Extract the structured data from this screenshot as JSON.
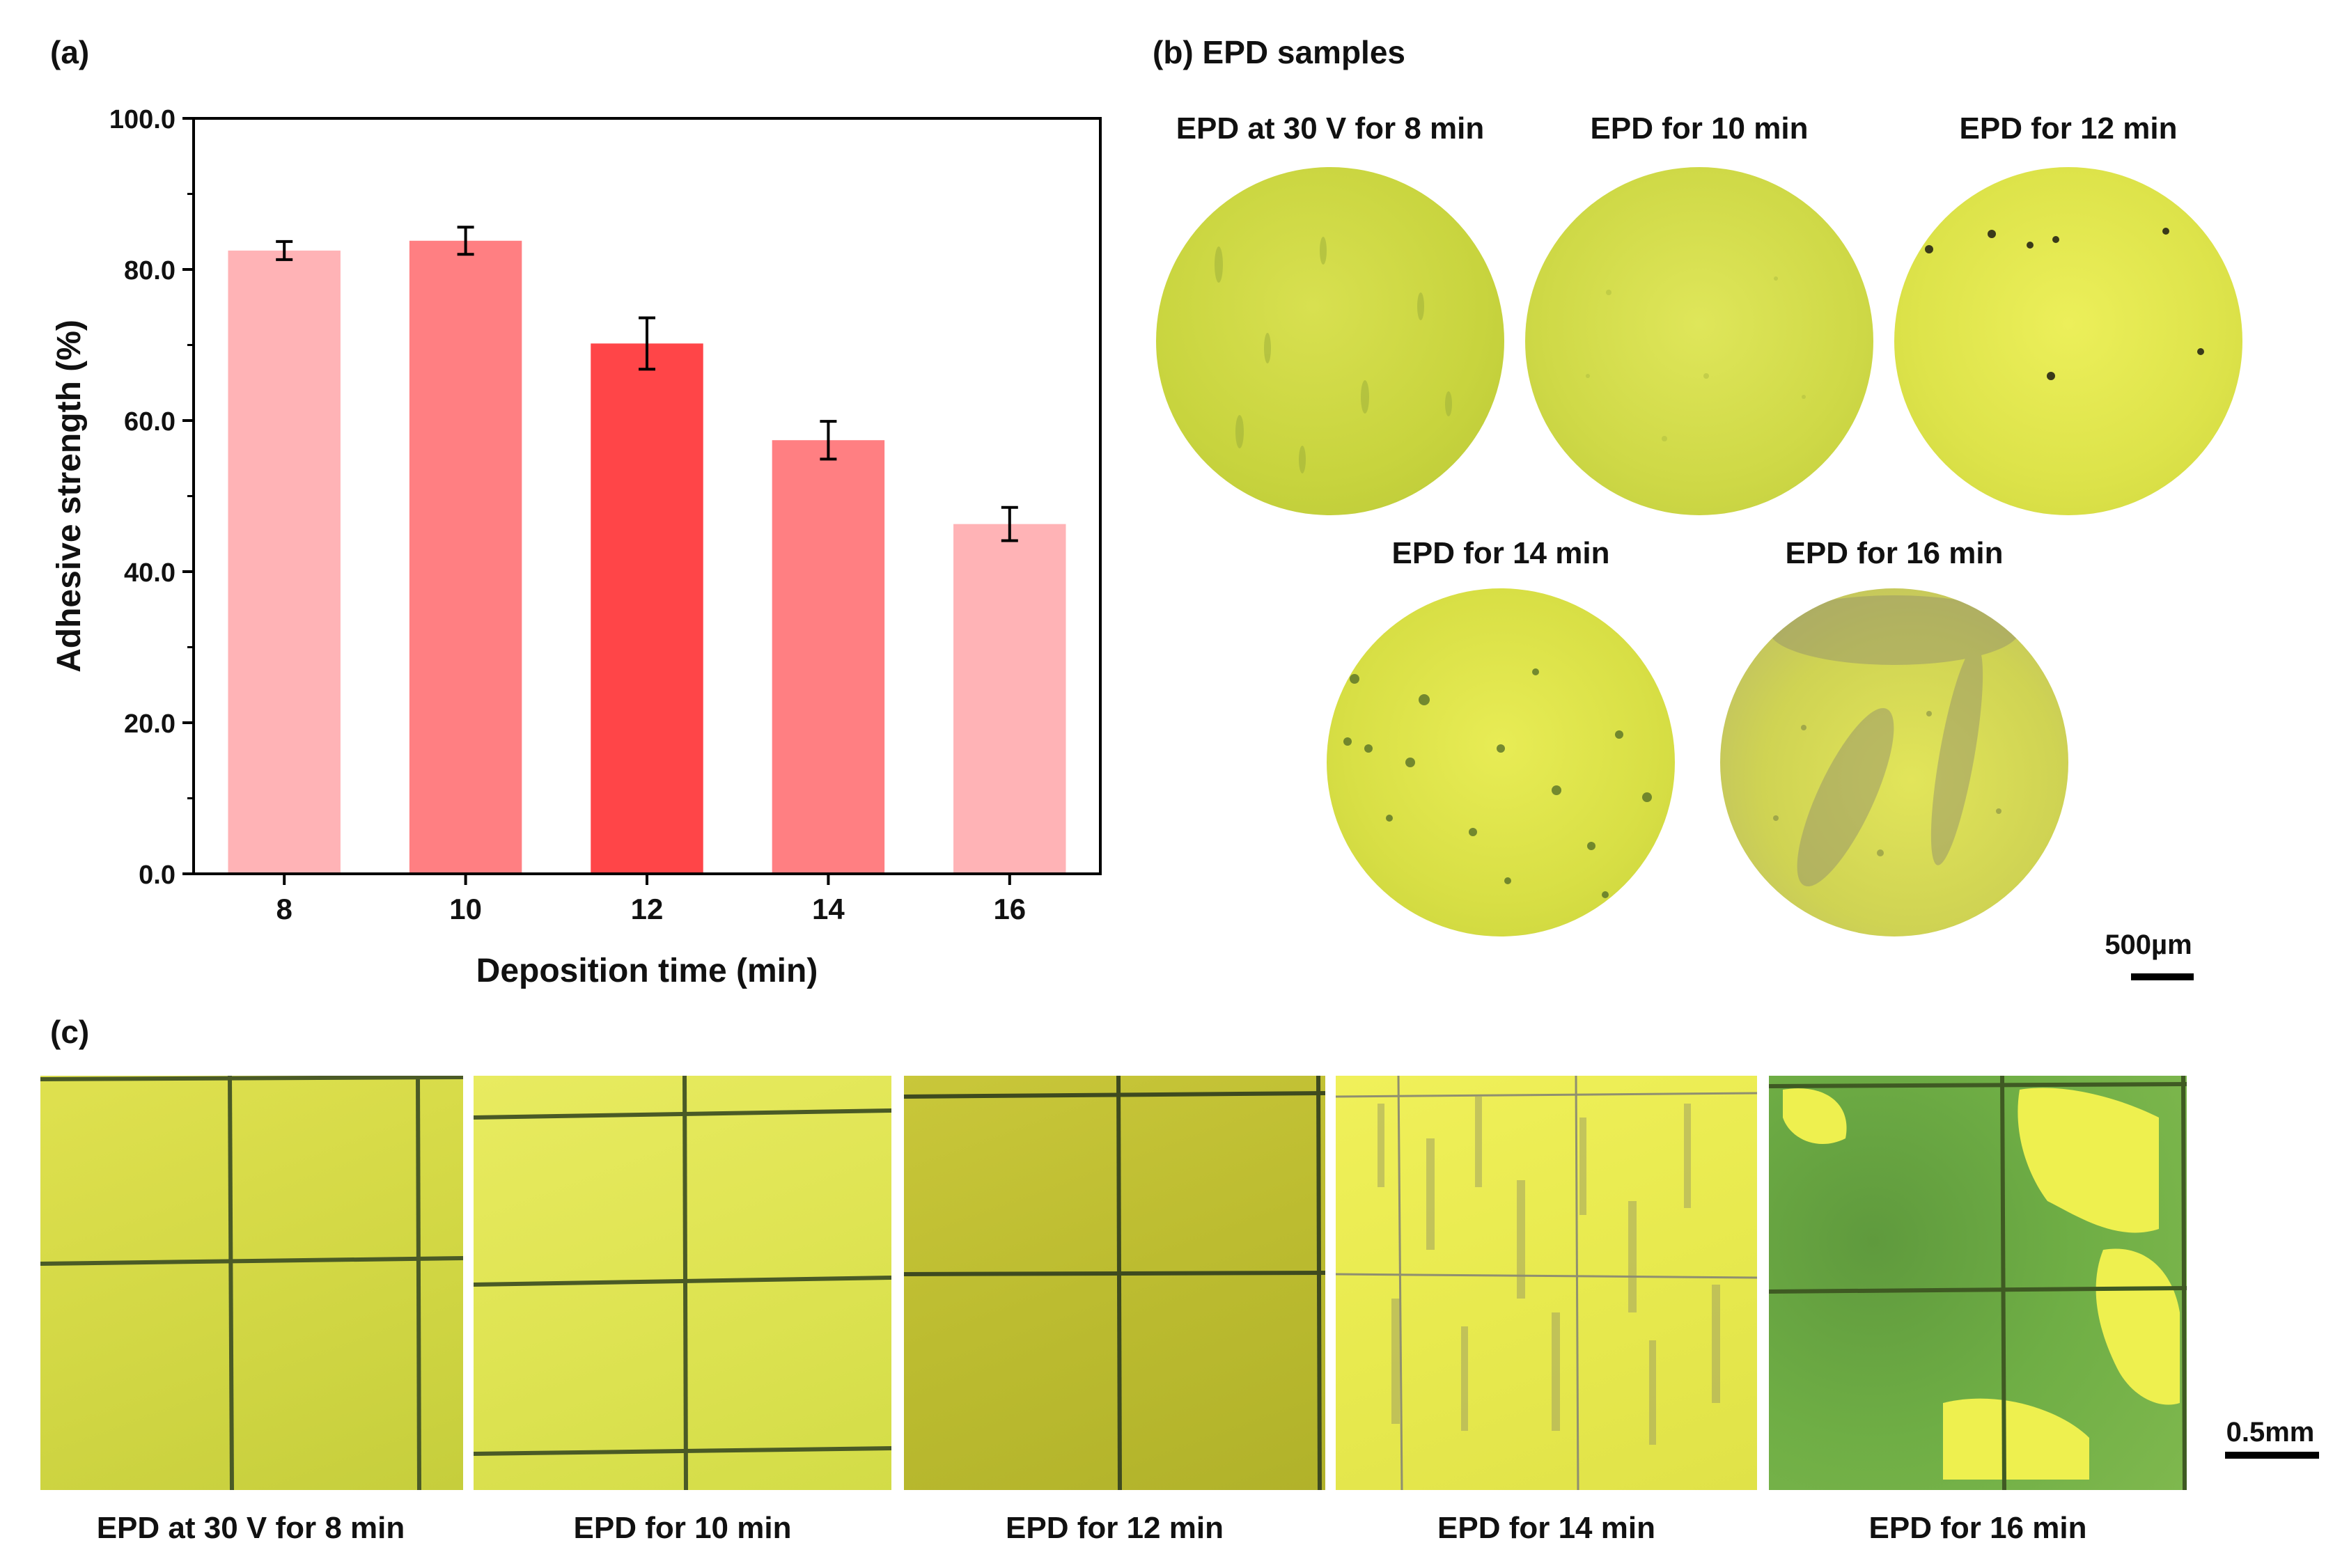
{
  "panel_a": {
    "label": "(a)",
    "chart_data": {
      "type": "bar",
      "title": "",
      "xlabel": "Deposition time (min)",
      "ylabel": "Adhesive strength (%)",
      "categories": [
        "8",
        "10",
        "12",
        "14",
        "16"
      ],
      "values": [
        82.5,
        83.8,
        70.2,
        57.4,
        46.3
      ],
      "errors": [
        1.2,
        1.8,
        3.4,
        2.5,
        2.2
      ],
      "bar_colors": [
        "#ffb3b6",
        "#ff7f82",
        "#ff4548",
        "#ff7f82",
        "#ffb3b6"
      ],
      "ylim": [
        0,
        100
      ],
      "yticks": [
        "0.0",
        "20.0",
        "40.0",
        "60.0",
        "80.0",
        "100.0"
      ],
      "grid": false
    }
  },
  "panel_b": {
    "label": "(b) EPD samples",
    "samples": [
      {
        "caption": "EPD at 30 V for 8 min"
      },
      {
        "caption": "EPD for 10 min"
      },
      {
        "caption": "EPD for 12 min"
      },
      {
        "caption": "EPD for 14 min"
      },
      {
        "caption": "EPD for 16 min"
      }
    ],
    "scale_label": "500µm"
  },
  "panel_c": {
    "label": "(c)",
    "samples": [
      {
        "caption": "EPD at 30 V for 8 min"
      },
      {
        "caption": "EPD for 10 min"
      },
      {
        "caption": "EPD for 12 min"
      },
      {
        "caption": "EPD for 14 min"
      },
      {
        "caption": "EPD for 16 min"
      }
    ],
    "scale_label": "0.5mm"
  },
  "colors": {
    "sample_yellow": "#d9e24a",
    "sample_bright": "#eef04f",
    "sample_dark": "#b8bd2a",
    "sample_green": "#8aa83a"
  }
}
